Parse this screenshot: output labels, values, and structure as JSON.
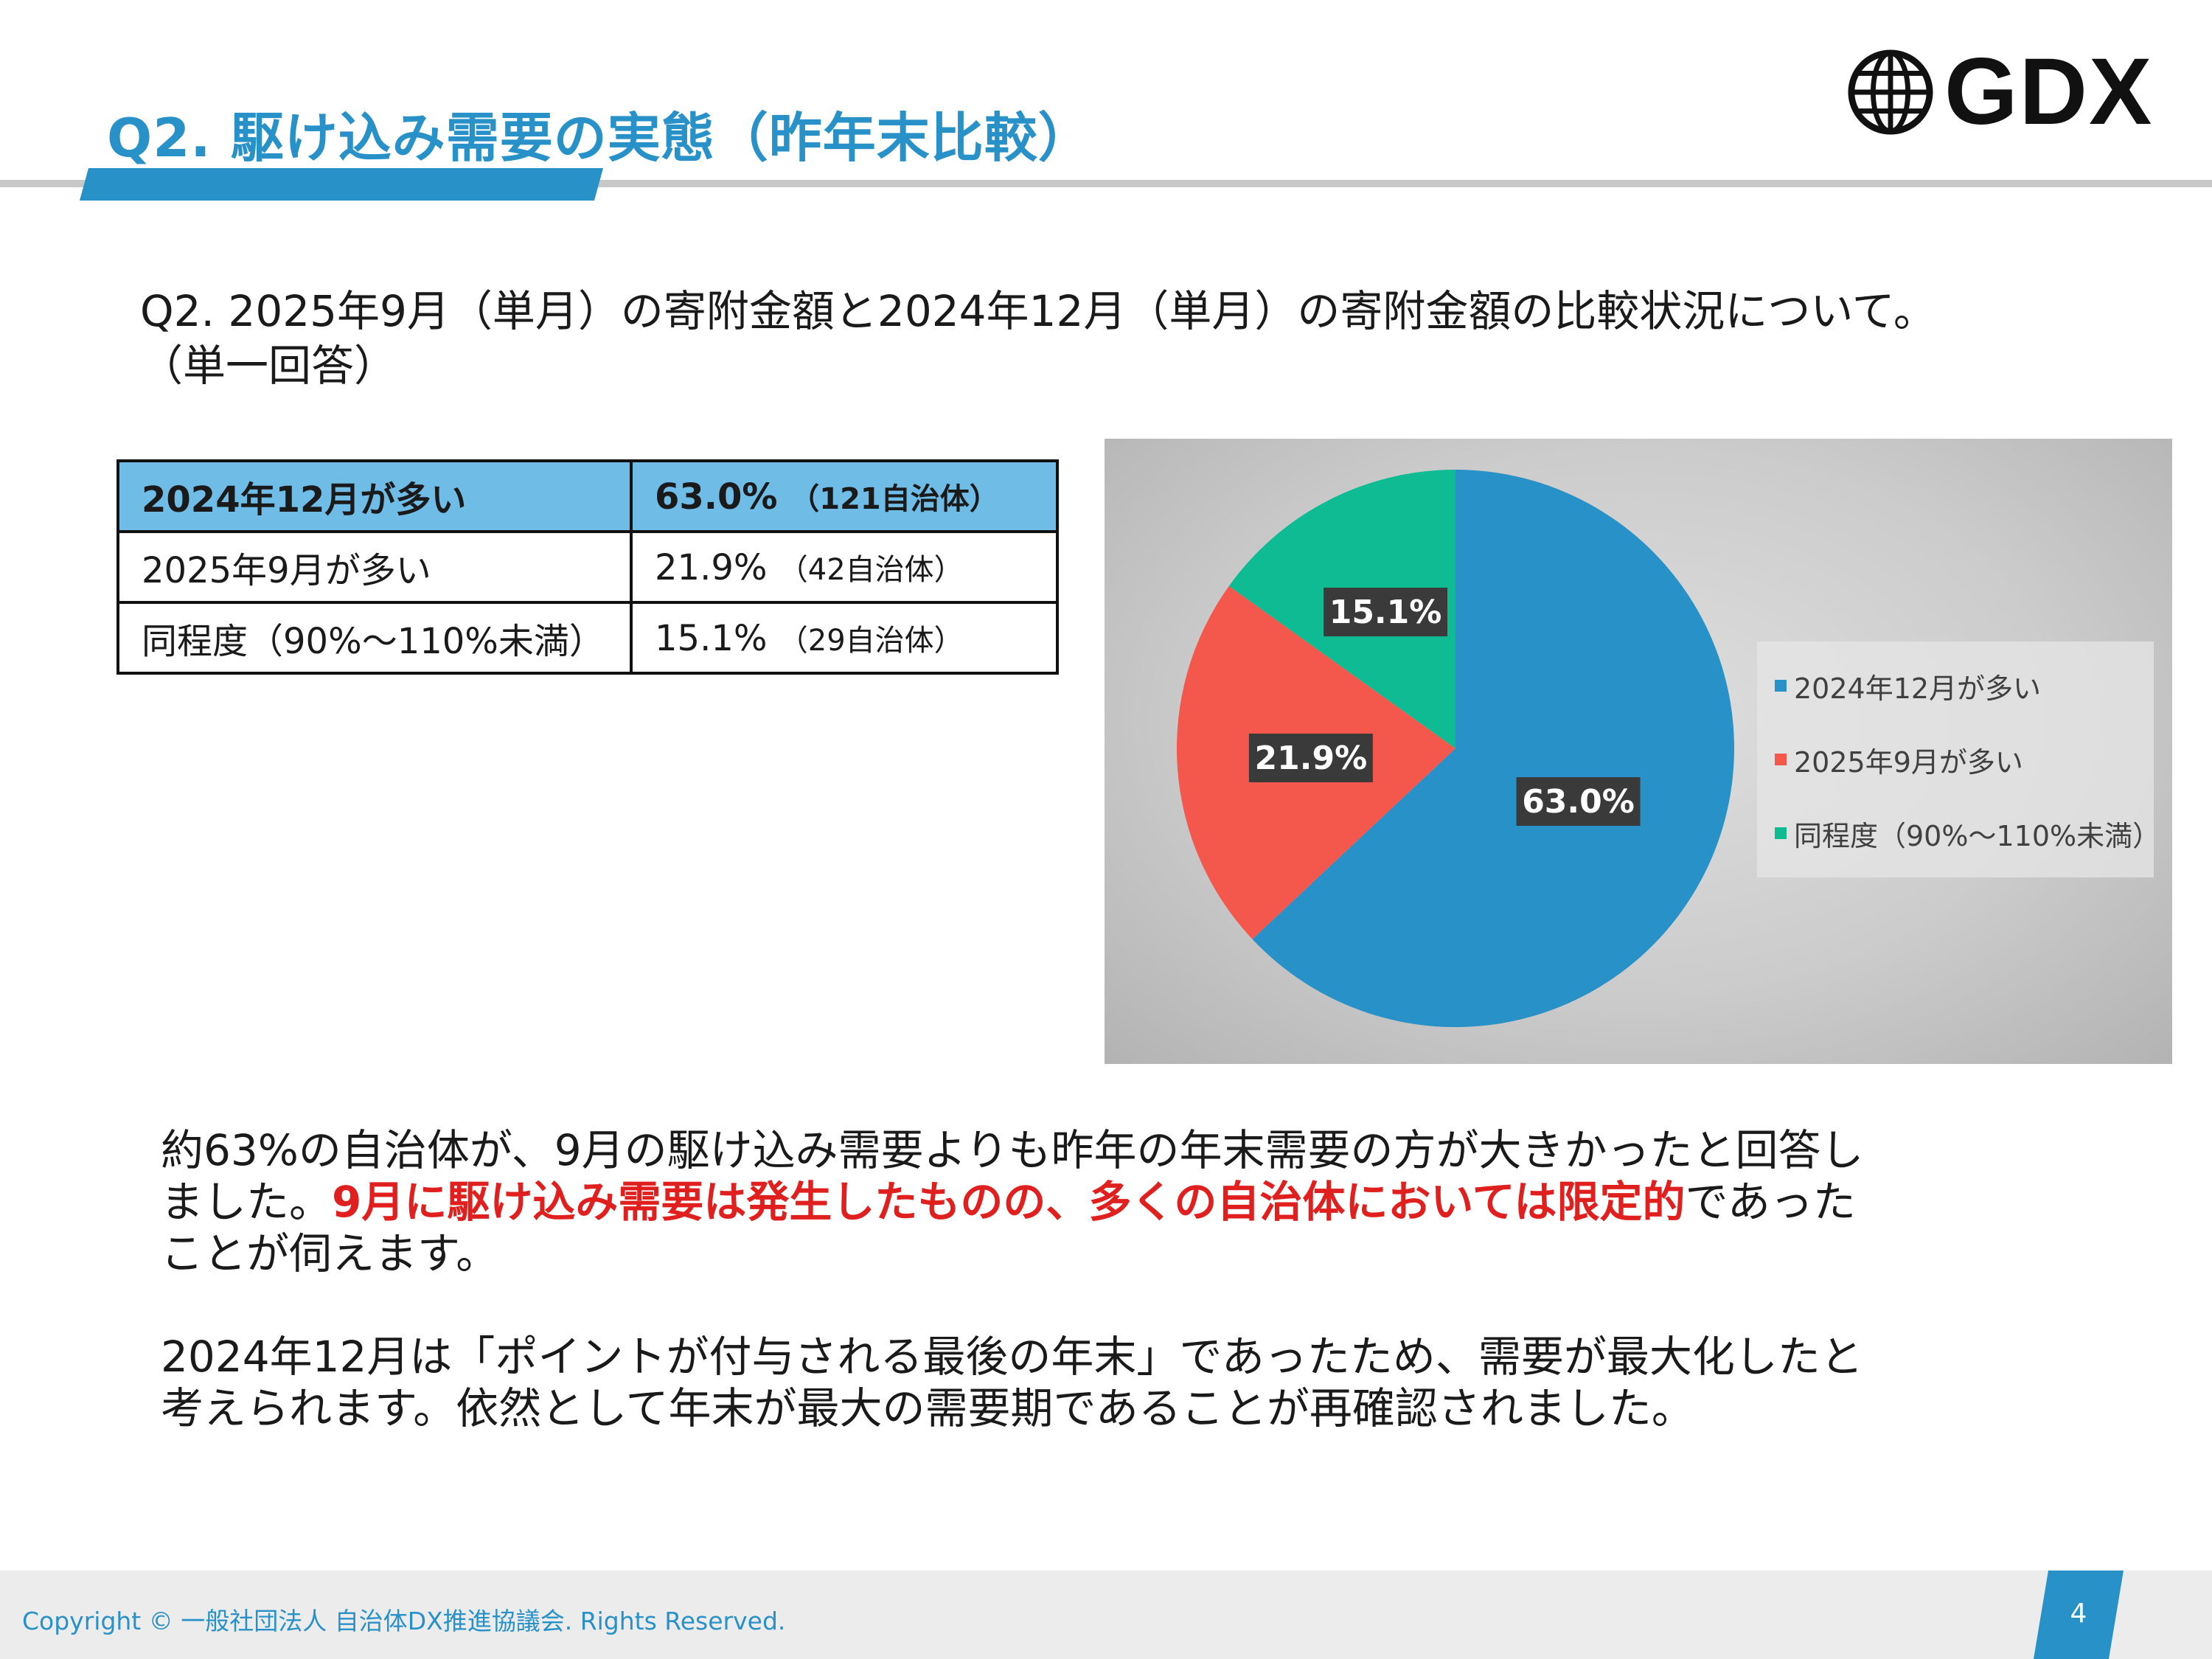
{
  "header": {
    "title": "Q2. 駆け込み需要の実態（昨年末比較）",
    "logo_text": "GDX"
  },
  "question": {
    "line1": "Q2. 2025年9月（単月）の寄附金額と2024年12月（単月）の寄附金額の比較状況について。",
    "line2": "（単一回答）"
  },
  "table": {
    "rows": [
      {
        "label": "2024年12月が多い",
        "value": "63.0%",
        "note": "（121自治体）"
      },
      {
        "label": "2025年9月が多い",
        "value": "21.9%",
        "note": "（42自治体）"
      },
      {
        "label": "同程度（90%～110%未満）",
        "value": "15.1%",
        "note": "（29自治体）"
      }
    ]
  },
  "chart_data": {
    "type": "pie",
    "categories": [
      "2024年12月が多い",
      "2025年9月が多い",
      "同程度（90%～110%未満）"
    ],
    "values": [
      63.0,
      21.9,
      15.1
    ],
    "labels": [
      "63.0%",
      "21.9%",
      "15.1%"
    ],
    "colors": [
      "#2791c8",
      "#f4574b",
      "#0fbb93"
    ],
    "start_angle": "12 o'clock",
    "direction": "clockwise",
    "legend_position": "right",
    "title": ""
  },
  "summary": {
    "p1_a": "約63%の自治体が、9月の駆け込み需要よりも昨年の年末需要の方が大きかったと回答しました。",
    "p1_emph": "9月に駆け込み需要は発生したものの、多くの自治体においては限定的",
    "p1_b": "であったことが伺えます。",
    "p2": "2024年12月は「ポイントが付与される最後の年末」であったため、需要が最大化したと考えられます。依然として年末が最大の需要期であることが再確認されました。"
  },
  "footer": {
    "copyright": "Copyright © 一般社団法人 自治体DX推進協議会. Rights Reserved.",
    "page_number": "4"
  },
  "colors": {
    "accent": "#2791c8",
    "emphasis": "#e0201f",
    "table_header": "#6fbce7"
  }
}
